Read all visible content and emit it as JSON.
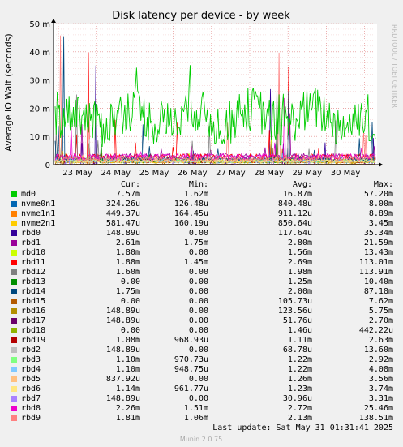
{
  "chart_data": {
    "type": "line",
    "title": "Disk latency per device - by week",
    "ylabel": "Average IO Wait (seconds)",
    "yticks": [
      "0",
      "10 m",
      "20 m",
      "30 m",
      "40 m",
      "50 m"
    ],
    "ylim": [
      0,
      0.05
    ],
    "xticks": [
      "23 May",
      "24 May",
      "25 May",
      "26 May",
      "27 May",
      "28 May",
      "29 May",
      "30 May"
    ],
    "grid": true,
    "series": [
      {
        "name": "md0",
        "color": "#00cc00",
        "cur": "7.57m",
        "min": "1.62m",
        "avg": "16.87m",
        "max": "57.20m"
      },
      {
        "name": "nvme0n1",
        "color": "#0066b3",
        "cur": "324.26u",
        "min": "126.48u",
        "avg": "840.48u",
        "max": "8.00m"
      },
      {
        "name": "nvme1n1",
        "color": "#ff8000",
        "cur": "449.37u",
        "min": "164.45u",
        "avg": "911.12u",
        "max": "8.89m"
      },
      {
        "name": "nvme2n1",
        "color": "#ffcc00",
        "cur": "581.47u",
        "min": "160.19u",
        "avg": "850.64u",
        "max": "3.45m"
      },
      {
        "name": "rbd0",
        "color": "#330099",
        "cur": "148.89u",
        "min": "0.00",
        "avg": "117.64u",
        "max": "35.34m"
      },
      {
        "name": "rbd1",
        "color": "#990099",
        "cur": "2.61m",
        "min": "1.75m",
        "avg": "2.80m",
        "max": "21.59m"
      },
      {
        "name": "rbd10",
        "color": "#ccff00",
        "cur": "1.80m",
        "min": "0.00",
        "avg": "1.56m",
        "max": "13.43m"
      },
      {
        "name": "rbd11",
        "color": "#ff0000",
        "cur": "1.88m",
        "min": "1.45m",
        "avg": "2.69m",
        "max": "113.01m"
      },
      {
        "name": "rbd12",
        "color": "#808080",
        "cur": "1.60m",
        "min": "0.00",
        "avg": "1.98m",
        "max": "113.91m"
      },
      {
        "name": "rbd13",
        "color": "#008f00",
        "cur": "0.00",
        "min": "0.00",
        "avg": "1.25m",
        "max": "10.40m"
      },
      {
        "name": "rbd14",
        "color": "#00487d",
        "cur": "1.75m",
        "min": "0.00",
        "avg": "2.00m",
        "max": "87.18m"
      },
      {
        "name": "rbd15",
        "color": "#b35a00",
        "cur": "0.00",
        "min": "0.00",
        "avg": "105.73u",
        "max": "7.62m"
      },
      {
        "name": "rbd16",
        "color": "#b38f00",
        "cur": "148.89u",
        "min": "0.00",
        "avg": "123.56u",
        "max": "5.75m"
      },
      {
        "name": "rbd17",
        "color": "#6b006b",
        "cur": "148.89u",
        "min": "0.00",
        "avg": "51.76u",
        "max": "2.70m"
      },
      {
        "name": "rbd18",
        "color": "#8fb300",
        "cur": "0.00",
        "min": "0.00",
        "avg": "1.46u",
        "max": "442.22u"
      },
      {
        "name": "rbd19",
        "color": "#b30000",
        "cur": "1.08m",
        "min": "968.93u",
        "avg": "1.11m",
        "max": "2.63m"
      },
      {
        "name": "rbd2",
        "color": "#bebebe",
        "cur": "148.89u",
        "min": "0.00",
        "avg": "68.78u",
        "max": "13.60m"
      },
      {
        "name": "rbd3",
        "color": "#80ff80",
        "cur": "1.10m",
        "min": "970.73u",
        "avg": "1.22m",
        "max": "2.92m"
      },
      {
        "name": "rbd4",
        "color": "#80c9ff",
        "cur": "1.10m",
        "min": "948.75u",
        "avg": "1.22m",
        "max": "4.08m"
      },
      {
        "name": "rbd5",
        "color": "#ffc080",
        "cur": "837.92u",
        "min": "0.00",
        "avg": "1.26m",
        "max": "3.56m"
      },
      {
        "name": "rbd6",
        "color": "#ffe680",
        "cur": "1.14m",
        "min": "961.77u",
        "avg": "1.23m",
        "max": "3.74m"
      },
      {
        "name": "rbd7",
        "color": "#aa80ff",
        "cur": "148.89u",
        "min": "0.00",
        "avg": "30.96u",
        "max": "3.31m"
      },
      {
        "name": "rbd8",
        "color": "#ee00cc",
        "cur": "2.26m",
        "min": "1.51m",
        "avg": "2.72m",
        "max": "25.46m"
      },
      {
        "name": "rbd9",
        "color": "#ff8080",
        "cur": "1.81m",
        "min": "1.06m",
        "avg": "2.13m",
        "max": "138.51m"
      }
    ]
  },
  "legend": {
    "cur": "Cur:",
    "min": "Min:",
    "avg": "Avg:",
    "max": "Max:"
  },
  "footer": {
    "last_update": "Last update: Sat May 31 01:31:41 2025",
    "credit": "RRDTOOL / TOBI OETIKER",
    "version": "Munin 2.0.75"
  }
}
